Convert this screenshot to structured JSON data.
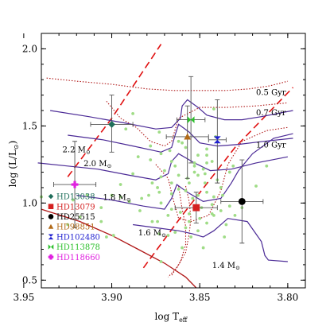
{
  "chart_data": {
    "type": "scatter",
    "xlabel": "log T",
    "xlabel_sub": "eff",
    "ylabel": "log (L/L",
    "ylabel_sub": "⊙",
    "ylabel_close": ")",
    "xlim": [
      3.94,
      3.79
    ],
    "ylim": [
      0.45,
      2.1
    ],
    "x_reversed": true,
    "x_ticks": [
      3.95,
      3.9,
      3.85,
      3.8
    ],
    "x_tick_labels": [
      "3.95",
      "3.90",
      "3.85",
      "3.80"
    ],
    "y_ticks": [
      0.5,
      1.0,
      1.5,
      2.0
    ],
    "y_tick_labels": [
      "0.5",
      "1.0",
      "1.5",
      "2.0"
    ],
    "grid": false,
    "legend_position": "bottom-left",
    "stars": [
      {
        "name": "HD13038",
        "x": 3.9,
        "y": 1.51,
        "xerr": 0.012,
        "yerr_lo": 0.18,
        "yerr_hi": 0.19,
        "marker": "diamond",
        "color": "#1f6e5a"
      },
      {
        "name": "HD13079",
        "x": 3.852,
        "y": 0.97,
        "xerr": 0.012,
        "yerr_lo": 0.1,
        "yerr_hi": 0.1,
        "marker": "square",
        "color": "#d42020"
      },
      {
        "name": "HD25515",
        "x": 3.826,
        "y": 1.01,
        "xerr": 0.012,
        "yerr_lo": 0.27,
        "yerr_hi": 0.27,
        "marker": "circle",
        "color": "#000000"
      },
      {
        "name": "HD98851",
        "x": 3.857,
        "y": 1.43,
        "xerr": 0.012,
        "yerr_lo": 0.27,
        "yerr_hi": 0.2,
        "marker": "triangle",
        "color": "#b26a18"
      },
      {
        "name": "HD102480",
        "x": 3.84,
        "y": 1.41,
        "xerr": 0.005,
        "yerr_lo": 0.28,
        "yerr_hi": 0.26,
        "marker": "hourglass",
        "color": "#1f1fd0"
      },
      {
        "name": "HD113878",
        "x": 3.855,
        "y": 1.54,
        "xerr": 0.008,
        "yerr_lo": 0.28,
        "yerr_hi": 0.28,
        "marker": "bowtie",
        "color": "#2cc02c"
      },
      {
        "name": "HD118660",
        "x": 3.921,
        "y": 1.12,
        "xerr": 0.012,
        "yerr_lo": 0.28,
        "yerr_hi": 0.28,
        "marker": "plus",
        "color": "#e020e0"
      }
    ],
    "background_points": [
      [
        3.892,
        1.48
      ],
      [
        3.885,
        1.3
      ],
      [
        3.873,
        1.46
      ],
      [
        3.878,
        1.37
      ],
      [
        3.872,
        1.32
      ],
      [
        3.867,
        1.34
      ],
      [
        3.86,
        1.39
      ],
      [
        3.862,
        1.4
      ],
      [
        3.858,
        1.36
      ],
      [
        3.851,
        1.31
      ],
      [
        3.846,
        1.31
      ],
      [
        3.846,
        1.35
      ],
      [
        3.841,
        1.43
      ],
      [
        3.851,
        1.18
      ],
      [
        3.853,
        1.2
      ],
      [
        3.847,
        1.13
      ],
      [
        3.856,
        1.13
      ],
      [
        3.862,
        1.09
      ],
      [
        3.866,
        1.06
      ],
      [
        3.866,
        1.13
      ],
      [
        3.872,
        1.17
      ],
      [
        3.87,
        1.21
      ],
      [
        3.877,
        1.13
      ],
      [
        3.874,
        1.1
      ],
      [
        3.879,
        1.05
      ],
      [
        3.872,
        1.0
      ],
      [
        3.866,
        0.96
      ],
      [
        3.861,
        0.94
      ],
      [
        3.856,
        0.88
      ],
      [
        3.858,
        0.84
      ],
      [
        3.864,
        0.81
      ],
      [
        3.851,
        0.82
      ],
      [
        3.846,
        0.87
      ],
      [
        3.842,
        0.92
      ],
      [
        3.838,
        0.95
      ],
      [
        3.833,
        0.98
      ],
      [
        3.843,
        0.99
      ],
      [
        3.842,
        1.04
      ],
      [
        3.846,
        1.07
      ],
      [
        3.838,
        1.1
      ],
      [
        3.84,
        1.15
      ],
      [
        3.833,
        1.2
      ],
      [
        3.831,
        1.24
      ],
      [
        3.846,
        1.26
      ],
      [
        3.853,
        1.26
      ],
      [
        3.857,
        1.16
      ],
      [
        3.847,
        1.19
      ],
      [
        3.851,
        1.05
      ],
      [
        3.854,
        1.03
      ],
      [
        3.849,
        0.97
      ],
      [
        3.843,
        0.93
      ],
      [
        3.83,
        0.92
      ],
      [
        3.826,
        0.97
      ],
      [
        3.818,
        1.11
      ],
      [
        3.812,
        1.24
      ],
      [
        3.855,
        0.78
      ],
      [
        3.848,
        0.71
      ],
      [
        3.868,
        0.79
      ],
      [
        3.877,
        0.88
      ],
      [
        3.884,
        0.95
      ],
      [
        3.883,
        1.03
      ],
      [
        3.89,
        1.01
      ],
      [
        3.895,
        1.04
      ],
      [
        3.9,
        1.05
      ],
      [
        3.906,
        0.97
      ],
      [
        3.914,
        1.05
      ],
      [
        3.922,
        1.02
      ],
      [
        3.918,
        0.91
      ],
      [
        3.925,
        0.86
      ],
      [
        3.899,
        0.79
      ],
      [
        3.903,
        0.78
      ],
      [
        3.895,
        1.12
      ],
      [
        3.888,
        1.19
      ],
      [
        3.878,
        1.28
      ],
      [
        3.864,
        1.24
      ],
      [
        3.862,
        1.18
      ],
      [
        3.868,
        0.92
      ],
      [
        3.874,
        0.88
      ],
      [
        3.837,
        1.05
      ],
      [
        3.835,
        0.86
      ],
      [
        3.873,
        1.07
      ],
      [
        3.856,
        0.93
      ],
      [
        3.85,
        0.9
      ],
      [
        3.836,
        0.78
      ],
      [
        3.873,
        0.8
      ],
      [
        3.848,
        1.22
      ],
      [
        3.843,
        1.27
      ],
      [
        3.858,
        1.08
      ],
      [
        3.906,
        0.88
      ],
      [
        3.94,
        1.04
      ],
      [
        3.842,
        1.61
      ],
      [
        3.888,
        1.58
      ],
      [
        3.872,
        0.62
      ],
      [
        3.86,
        0.71
      ],
      [
        3.853,
        1.24
      ],
      [
        3.866,
        1.27
      ]
    ],
    "tracks": [
      {
        "label": "2.2 M",
        "label_sub": "⊙",
        "label_x": 3.928,
        "label_y": 1.33,
        "points": [
          [
            3.935,
            1.6
          ],
          [
            3.913,
            1.56
          ],
          [
            3.893,
            1.52
          ],
          [
            3.875,
            1.48
          ],
          [
            3.866,
            1.49
          ],
          [
            3.861,
            1.55
          ],
          [
            3.86,
            1.63
          ],
          [
            3.857,
            1.67
          ],
          [
            3.851,
            1.62
          ],
          [
            3.846,
            1.57
          ],
          [
            3.836,
            1.54
          ],
          [
            3.826,
            1.54
          ],
          [
            3.815,
            1.56
          ],
          [
            3.797,
            1.6
          ]
        ]
      },
      {
        "label": "2.0 M",
        "label_sub": "⊙",
        "label_x": 3.916,
        "label_y": 1.24,
        "points": [
          [
            3.925,
            1.44
          ],
          [
            3.905,
            1.41
          ],
          [
            3.888,
            1.37
          ],
          [
            3.872,
            1.33
          ],
          [
            3.866,
            1.36
          ],
          [
            3.864,
            1.44
          ],
          [
            3.862,
            1.51
          ],
          [
            3.856,
            1.46
          ],
          [
            3.85,
            1.39
          ],
          [
            3.84,
            1.37
          ],
          [
            3.828,
            1.38
          ],
          [
            3.814,
            1.4
          ],
          [
            3.797,
            1.42
          ]
        ]
      },
      {
        "label": "1.8 M",
        "label_sub": "⊙",
        "label_x": 3.905,
        "label_y": 1.02,
        "points": [
          [
            3.942,
            1.26
          ],
          [
            3.925,
            1.24
          ],
          [
            3.908,
            1.22
          ],
          [
            3.89,
            1.18
          ],
          [
            3.875,
            1.15
          ],
          [
            3.868,
            1.19
          ],
          [
            3.866,
            1.27
          ],
          [
            3.862,
            1.32
          ],
          [
            3.853,
            1.26
          ],
          [
            3.844,
            1.21
          ],
          [
            3.832,
            1.22
          ],
          [
            3.818,
            1.26
          ],
          [
            3.8,
            1.3
          ]
        ]
      },
      {
        "label": "1.6 M",
        "label_sub": "⊙",
        "label_x": 3.885,
        "label_y": 0.79,
        "points": [
          [
            3.92,
            1.05
          ],
          [
            3.9,
            1.02
          ],
          [
            3.882,
            0.98
          ],
          [
            3.87,
            0.96
          ],
          [
            3.866,
            1.03
          ],
          [
            3.863,
            1.12
          ],
          [
            3.857,
            1.07
          ],
          [
            3.848,
            1.01
          ],
          [
            3.838,
            1.03
          ],
          [
            3.832,
            1.13
          ],
          [
            3.828,
            1.21
          ],
          [
            3.82,
            1.32
          ],
          [
            3.808,
            1.42
          ],
          [
            3.797,
            1.45
          ]
        ]
      },
      {
        "label": "1.4 M",
        "label_sub": "⊙",
        "label_x": 3.843,
        "label_y": 0.58,
        "points": [
          [
            3.888,
            0.86
          ],
          [
            3.875,
            0.84
          ],
          [
            3.862,
            0.82
          ],
          [
            3.854,
            0.8
          ],
          [
            3.848,
            0.78
          ],
          [
            3.842,
            0.82
          ],
          [
            3.834,
            0.9
          ],
          [
            3.823,
            0.88
          ],
          [
            3.815,
            0.75
          ],
          [
            3.813,
            0.66
          ],
          [
            3.811,
            0.63
          ],
          [
            3.8,
            0.62
          ]
        ]
      }
    ],
    "zams": [
      [
        3.94,
        0.96
      ],
      [
        3.918,
        0.88
      ],
      [
        3.9,
        0.79
      ],
      [
        3.885,
        0.7
      ],
      [
        3.87,
        0.61
      ],
      [
        3.858,
        0.52
      ],
      [
        3.852,
        0.45
      ]
    ],
    "isochrones": [
      {
        "label": "0.5 Gyr",
        "label_x": 3.818,
        "label_y": 1.7,
        "points": [
          [
            3.937,
            1.81
          ],
          [
            3.92,
            1.79
          ],
          [
            3.9,
            1.77
          ],
          [
            3.88,
            1.74
          ],
          [
            3.865,
            1.73
          ],
          [
            3.85,
            1.73
          ],
          [
            3.835,
            1.73
          ],
          [
            3.822,
            1.74
          ],
          [
            3.81,
            1.76
          ],
          [
            3.8,
            1.79
          ]
        ]
      },
      {
        "label": "0.7 Gyr",
        "label_x": 3.818,
        "label_y": 1.57,
        "points": [
          [
            3.903,
            1.66
          ],
          [
            3.895,
            1.55
          ],
          [
            3.886,
            1.49
          ],
          [
            3.878,
            1.4
          ],
          [
            3.87,
            1.37
          ],
          [
            3.866,
            1.4
          ],
          [
            3.862,
            1.55
          ],
          [
            3.85,
            1.62
          ],
          [
            3.835,
            1.62
          ],
          [
            3.818,
            1.63
          ],
          [
            3.8,
            1.65
          ]
        ]
      },
      {
        "label": "1.0 Gyr",
        "label_x": 3.818,
        "label_y": 1.36,
        "points": [
          [
            3.875,
            1.25
          ],
          [
            3.868,
            1.16
          ],
          [
            3.865,
            1.02
          ],
          [
            3.862,
            0.9
          ],
          [
            3.855,
            0.88
          ],
          [
            3.845,
            0.92
          ],
          [
            3.838,
            1.08
          ],
          [
            3.834,
            1.25
          ],
          [
            3.826,
            1.4
          ],
          [
            3.812,
            1.47
          ],
          [
            3.8,
            1.49
          ]
        ]
      },
      {
        "label": "",
        "label_x": 0,
        "label_y": 0,
        "points": [
          [
            3.858,
            1.11
          ],
          [
            3.856,
            1.01
          ],
          [
            3.855,
            0.9
          ],
          [
            3.856,
            0.8
          ],
          [
            3.858,
            0.68
          ],
          [
            3.863,
            0.58
          ],
          [
            3.868,
            0.52
          ]
        ]
      },
      {
        "label": "",
        "label_x": 0,
        "label_y": 0,
        "points": [
          [
            3.862,
            1.11
          ],
          [
            3.86,
            0.96
          ],
          [
            3.858,
            0.85
          ],
          [
            3.858,
            0.73
          ],
          [
            3.861,
            0.62
          ],
          [
            3.866,
            0.53
          ]
        ]
      }
    ],
    "instability_strip": [
      {
        "points": [
          [
            3.925,
            1.17
          ],
          [
            3.9,
            1.55
          ],
          [
            3.872,
            2.03
          ]
        ]
      },
      {
        "points": [
          [
            3.882,
            0.58
          ],
          [
            3.86,
            0.92
          ],
          [
            3.83,
            1.36
          ],
          [
            3.797,
            1.75
          ]
        ]
      }
    ]
  }
}
